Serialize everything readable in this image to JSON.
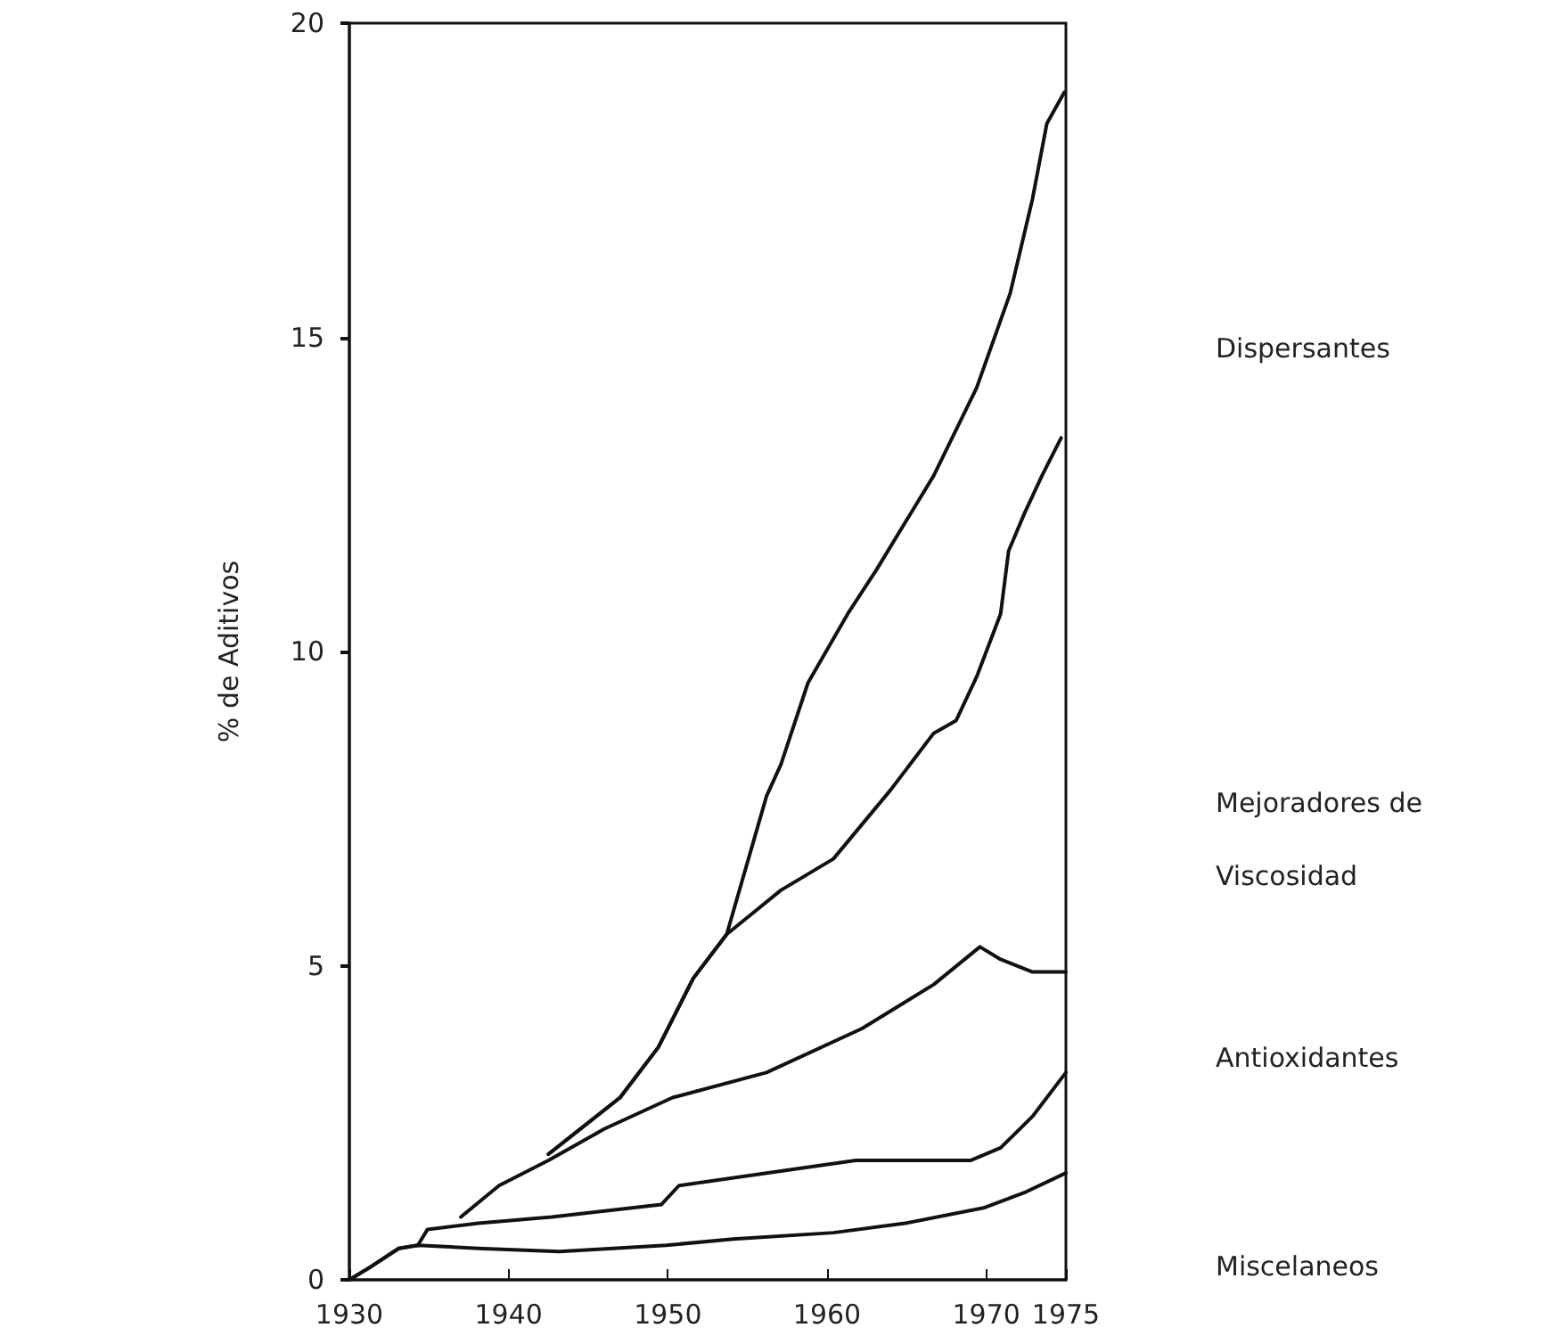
{
  "chart_data": {
    "type": "line",
    "ylabel": "% de Aditivos",
    "xlim": [
      1930,
      1975
    ],
    "xticks": [
      1930,
      1940,
      1950,
      1960,
      1970,
      1975
    ],
    "ylim": [
      0,
      20
    ],
    "yticks": [
      0,
      5,
      10,
      15,
      20
    ],
    "grid": false,
    "marker": "none",
    "line_style": "solid",
    "annotations": [
      "Dispersantes",
      "Mejoradores de Viscosidad",
      "Antioxidantes",
      "Miscelaneos"
    ],
    "series": [
      {
        "color": "#111111",
        "x": [
          1942.5,
          1947,
          1949.4,
          1951.6,
          1953.7,
          1956.2,
          1957.1,
          1958.8,
          1961.3,
          1963.1,
          1966.7,
          1969.4,
          1971.5,
          1972.9,
          1973.8,
          1974.9
        ],
        "values": [
          2.0,
          2.9,
          3.7,
          4.8,
          5.5,
          7.7,
          8.2,
          9.5,
          10.6,
          11.3,
          12.8,
          14.2,
          15.7,
          17.2,
          18.4,
          18.9
        ]
      },
      {
        "color": "#111111",
        "x": [
          1942.5,
          1947,
          1949.4,
          1951.6,
          1953.7,
          1957.1,
          1960.4,
          1964,
          1966.7,
          1968.1,
          1969.4,
          1970.9,
          1971.4,
          1972.4,
          1973.5,
          1974.7
        ],
        "values": [
          2.0,
          2.9,
          3.7,
          4.8,
          5.5,
          6.2,
          6.7,
          7.8,
          8.7,
          8.9,
          9.6,
          10.6,
          11.6,
          12.2,
          12.8,
          13.4
        ]
      },
      {
        "color": "#111111",
        "x": [
          1937,
          1939.4,
          1942.5,
          1946,
          1950.3,
          1956.2,
          1962.2,
          1966.7,
          1969.6,
          1970.9,
          1972.9,
          1975
        ],
        "values": [
          1.0,
          1.5,
          1.9,
          2.4,
          2.9,
          3.3,
          4.0,
          4.7,
          5.3,
          5.1,
          4.9,
          4.9
        ]
      },
      {
        "color": "#111111",
        "x": [
          1930,
          1931.3,
          1933.1,
          1934.3,
          1934.9,
          1938.1,
          1942.7,
          1949.6,
          1950.7,
          1956.2,
          1961.8,
          1969,
          1970.9,
          1972.9,
          1975
        ],
        "values": [
          0,
          0.2,
          0.5,
          0.55,
          0.8,
          0.9,
          1.0,
          1.2,
          1.5,
          1.7,
          1.9,
          1.9,
          2.1,
          2.6,
          3.3
        ]
      },
      {
        "color": "#111111",
        "x": [
          1930,
          1931.3,
          1933.1,
          1934.3,
          1938.1,
          1943.2,
          1949.9,
          1954.1,
          1960.4,
          1964.9,
          1969.9,
          1972.5,
          1975
        ],
        "values": [
          0,
          0.2,
          0.5,
          0.55,
          0.5,
          0.45,
          0.55,
          0.65,
          0.75,
          0.9,
          1.15,
          1.4,
          1.7
        ]
      }
    ]
  }
}
